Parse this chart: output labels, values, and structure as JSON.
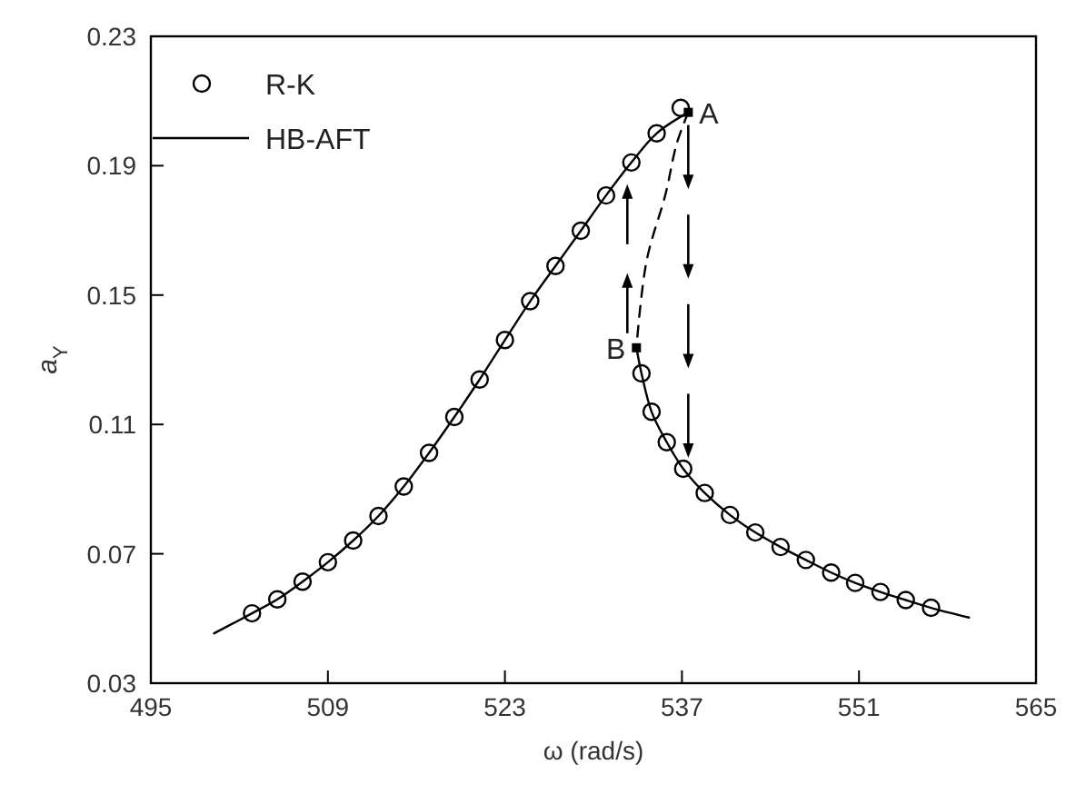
{
  "chart_data": {
    "type": "scatter",
    "xlabel": "ω (rad/s)",
    "ylabel": "a$_{Y}$",
    "xlim": [
      495,
      565
    ],
    "xticks": [
      495,
      509,
      523,
      537,
      551,
      565
    ],
    "ylim": [
      0.03,
      0.23
    ],
    "yticks": [
      0.03,
      0.07,
      0.11,
      0.15,
      0.19,
      0.23
    ],
    "grid": false,
    "legend": "top left",
    "series": [
      {
        "name": "R-K",
        "marker": "circle",
        "color": "#000000",
        "x": [
          503.0,
          505.0,
          507.0,
          509.0,
          511.0,
          513.0,
          515.0,
          517.0,
          519.0,
          521.0,
          523.0,
          525.0,
          527.0,
          529.0,
          531.0,
          533.0,
          535.0,
          536.9,
          533.8,
          534.6,
          535.8,
          537.1,
          538.8,
          540.8,
          542.8,
          544.8,
          546.8,
          548.8,
          550.7,
          552.7,
          554.7,
          556.7
        ],
        "values": [
          0.0516,
          0.0559,
          0.0614,
          0.0674,
          0.0741,
          0.0817,
          0.0908,
          0.1012,
          0.1123,
          0.1239,
          0.1361,
          0.1481,
          0.159,
          0.1699,
          0.1808,
          0.191,
          0.2,
          0.2079,
          0.1258,
          0.1139,
          0.1045,
          0.0963,
          0.0888,
          0.082,
          0.0766,
          0.0721,
          0.0681,
          0.0642,
          0.061,
          0.0582,
          0.0557,
          0.0533
        ]
      },
      {
        "name": "HB-AFT",
        "type": "line",
        "marker": "none",
        "line_style": "solid",
        "color": "#000000",
        "x": [
          500.0,
          503.0,
          505.0,
          507.0,
          509.0,
          511.0,
          513.0,
          515.0,
          517.0,
          519.0,
          521.0,
          523.0,
          525.0,
          527.0,
          529.0,
          531.0,
          533.0,
          535.0,
          537.5
        ],
        "values": [
          0.0454,
          0.0516,
          0.0559,
          0.0614,
          0.0674,
          0.0741,
          0.0817,
          0.0908,
          0.1012,
          0.1123,
          0.1239,
          0.1361,
          0.1481,
          0.159,
          0.1699,
          0.1808,
          0.191,
          0.2,
          0.2065
        ]
      },
      {
        "type": "line",
        "marker": "none",
        "line_style": "solid",
        "color": "#000000",
        "x": [
          533.4,
          533.8,
          534.6,
          535.8,
          537.1,
          538.8,
          540.8,
          542.8,
          544.8,
          546.8,
          548.8,
          550.7,
          552.7,
          554.7,
          556.7,
          559.7
        ],
        "values": [
          0.1337,
          0.1258,
          0.1139,
          0.1045,
          0.0963,
          0.0888,
          0.082,
          0.0766,
          0.0721,
          0.0681,
          0.0642,
          0.061,
          0.0582,
          0.0557,
          0.0533,
          0.0503
        ]
      },
      {
        "type": "line",
        "marker": "none",
        "line_style": "dashed",
        "color": "#000000",
        "x": [
          537.5,
          536.6,
          535.7,
          534.2,
          533.4
        ],
        "values": [
          0.2065,
          0.197,
          0.1812,
          0.1605,
          0.1337
        ]
      }
    ],
    "annotations": [
      {
        "text": "A",
        "x": 537.5,
        "y": 0.2065
      },
      {
        "text": "B",
        "x": 533.4,
        "y": 0.1337
      }
    ]
  }
}
